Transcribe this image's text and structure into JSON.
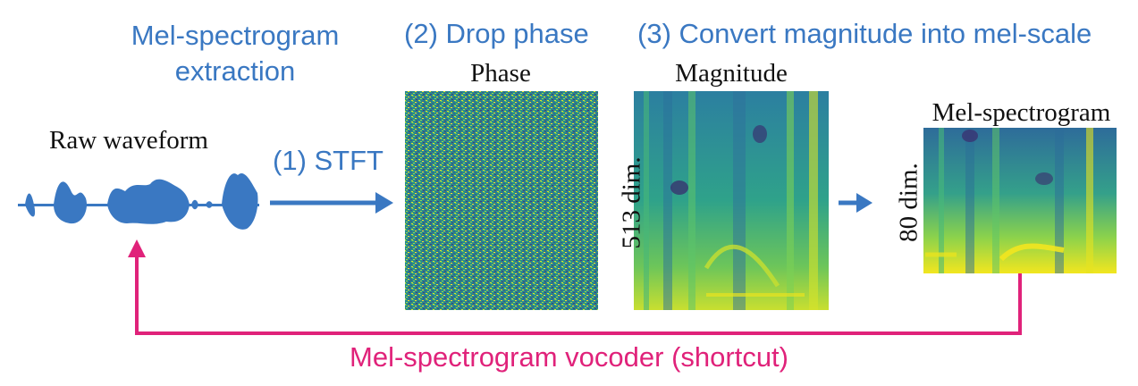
{
  "titles": {
    "extraction": "Mel-spectrogram extraction",
    "drop_phase": "(2) Drop phase",
    "convert": "(3) Convert magnitude into mel-scale"
  },
  "steps": {
    "stft": "(1) STFT"
  },
  "labels": {
    "raw": "Raw waveform",
    "phase": "Phase",
    "magnitude": "Magnitude",
    "mel": "Mel-spectrogram",
    "dim_513": "513 dim.",
    "dim_80": "80 dim."
  },
  "vocoder": "Mel-spectrogram vocoder (shortcut)",
  "colors": {
    "step_text": "#3a78c2",
    "arrow": "#3a78c2",
    "vocoder": "#e0227a",
    "viridis_dark": "#3b528b",
    "viridis_mid": "#21918c",
    "viridis_light": "#5ec962",
    "viridis_yellow": "#fde725"
  }
}
